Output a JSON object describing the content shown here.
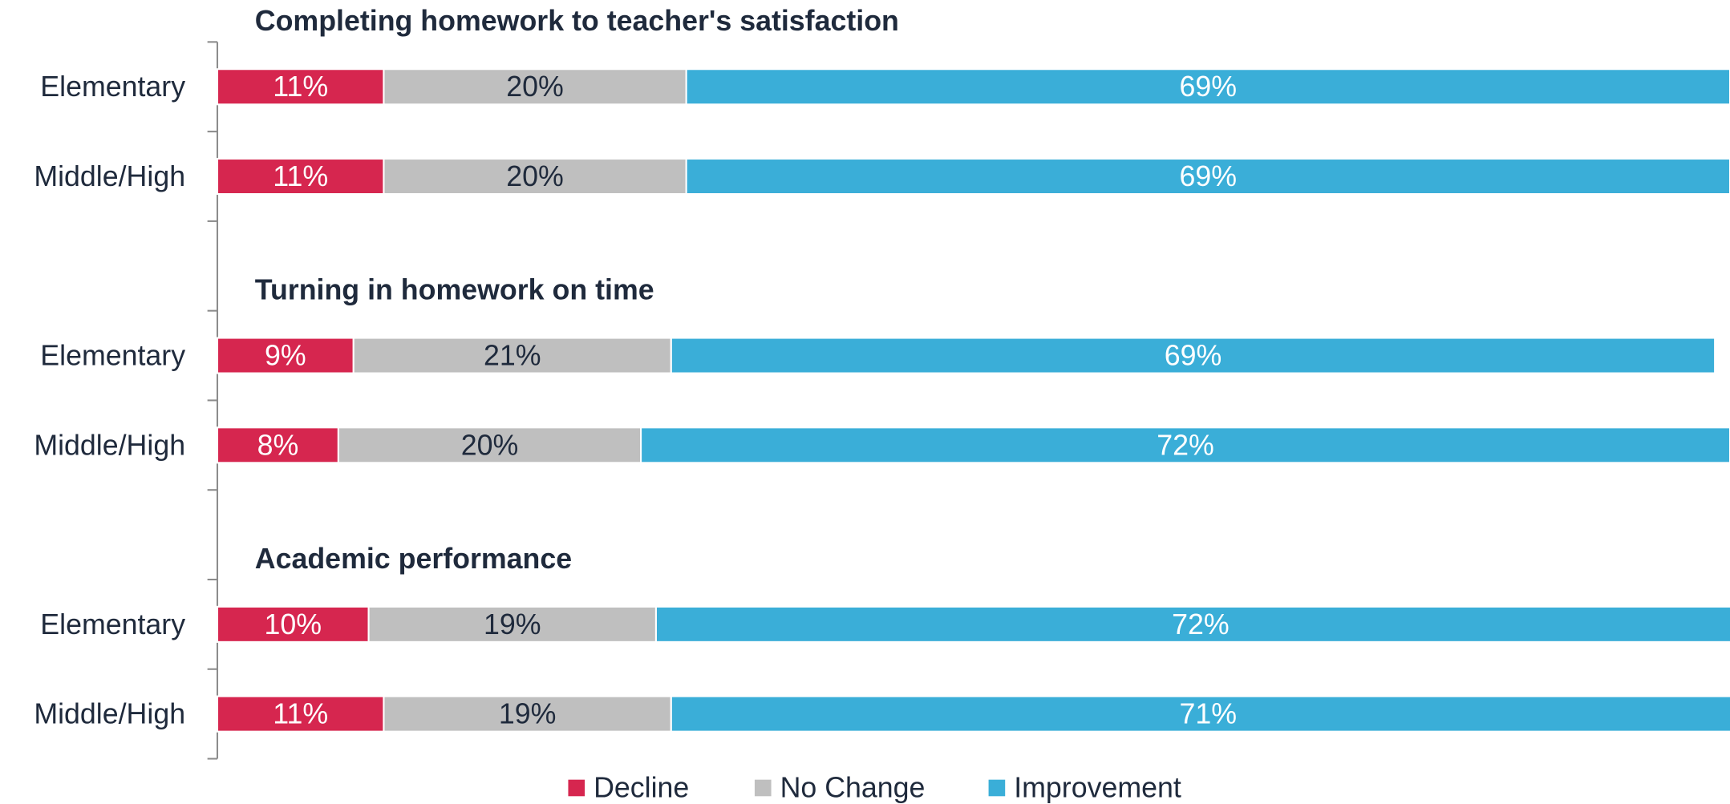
{
  "chart_data": {
    "type": "stacked-bar-horizontal",
    "groups": [
      {
        "title": "Completing homework to teacher's satisfaction",
        "categories": [
          "Elementary",
          "Middle/High"
        ]
      },
      {
        "title": "Turning in homework on time",
        "categories": [
          "Elementary",
          "Middle/High"
        ]
      },
      {
        "title": "Academic performance",
        "categories": [
          "Elementary",
          "Middle/High"
        ]
      }
    ],
    "series": [
      {
        "name": "Decline",
        "color": "#d6264f",
        "label_color": "#ffffff",
        "values": [
          11,
          11,
          9,
          8,
          10,
          11
        ],
        "value_labels": [
          "11%",
          "11%",
          "9%",
          "8%",
          "10%",
          "11%"
        ]
      },
      {
        "name": "No Change",
        "color": "#bfbfbf",
        "label_color": "#1f2a3c",
        "values": [
          20,
          20,
          21,
          20,
          19,
          19
        ],
        "value_labels": [
          "20%",
          "20%",
          "21%",
          "20%",
          "19%",
          "19%"
        ]
      },
      {
        "name": "Improvement",
        "color": "#3aaed8",
        "label_color": "#ffffff",
        "values": [
          69,
          69,
          69,
          72,
          72,
          71
        ],
        "value_labels": [
          "69%",
          "69%",
          "69%",
          "72%",
          "72%",
          "71%"
        ]
      }
    ],
    "xlim": [
      0,
      100
    ],
    "legend": "bottom"
  }
}
